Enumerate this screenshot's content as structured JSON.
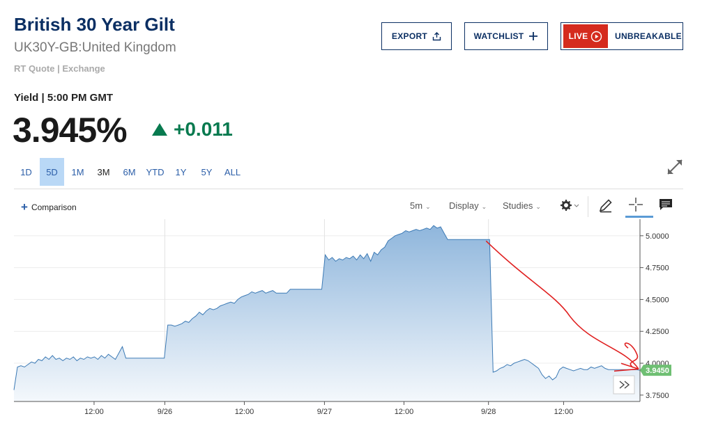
{
  "header": {
    "title": "British 30 Year Gilt",
    "subtitle": "UK30Y-GB:United Kingdom",
    "quote_source": "RT Quote | Exchange"
  },
  "actions": {
    "export_label": "EXPORT",
    "watchlist_label": "WATCHLIST",
    "live_label": "LIVE",
    "live_show_label": "UNBREAKABLE"
  },
  "quote": {
    "yield_label": "Yield | 5:00 PM GMT",
    "price": "3.945%",
    "change": "+0.011",
    "change_color": "#087a4f"
  },
  "ranges": [
    {
      "label": "1D",
      "active": false
    },
    {
      "label": "5D",
      "active": true
    },
    {
      "label": "1M",
      "active": false
    },
    {
      "label": "3M",
      "active": false
    },
    {
      "label": "6M",
      "active": false
    },
    {
      "label": "YTD",
      "active": false
    },
    {
      "label": "1Y",
      "active": false
    },
    {
      "label": "5Y",
      "active": false
    },
    {
      "label": "ALL",
      "active": false
    }
  ],
  "toolbar": {
    "comparison_label": "Comparison",
    "interval_label": "5m",
    "display_label": "Display",
    "studies_label": "Studies",
    "icons": [
      "gear-icon",
      "pencil-icon",
      "crosshair-icon",
      "comment-icon"
    ]
  },
  "chart_data": {
    "type": "area",
    "ylim": [
      3.7,
      5.13
    ],
    "y_ticks": [
      "5.0000",
      "4.7500",
      "4.5000",
      "4.2500",
      "4.0000",
      "3.7500"
    ],
    "x_ticks": [
      "12:00",
      "9/26",
      "12:00",
      "9/27",
      "12:00",
      "9/28",
      "12:00"
    ],
    "last_value_label": "3.9450",
    "color": "#3c7ab5",
    "fill_top": "#8fb6dc",
    "fill_bottom": "#f4f8fc",
    "last_label_color": "#6fbf73",
    "annotation_color": "#e02020",
    "series": [
      {
        "values": [
          3.79,
          3.97,
          3.98,
          3.97,
          3.99,
          4.01,
          4.0,
          4.03,
          4.02,
          4.05,
          4.03,
          4.06,
          4.03,
          4.04,
          4.02,
          4.04,
          4.03,
          4.05,
          4.02,
          4.04,
          4.03,
          4.05,
          4.04,
          4.05,
          4.03,
          4.06,
          4.04,
          4.07,
          4.05,
          4.03,
          4.08,
          4.13,
          4.04,
          4.04,
          4.04,
          4.04,
          4.04,
          4.04,
          4.04,
          4.04,
          4.04,
          4.04,
          4.04,
          4.04,
          4.3,
          4.3,
          4.29,
          4.3,
          4.31,
          4.33,
          4.32,
          4.35,
          4.37,
          4.4,
          4.38,
          4.41,
          4.43,
          4.42,
          4.43,
          4.45,
          4.46,
          4.47,
          4.48,
          4.47,
          4.5,
          4.52,
          4.53,
          4.54,
          4.56,
          4.55,
          4.56,
          4.57,
          4.55,
          4.56,
          4.57,
          4.55,
          4.55,
          4.55,
          4.55,
          4.58,
          4.58,
          4.58,
          4.58,
          4.58,
          4.58,
          4.58,
          4.58,
          4.58,
          4.58,
          4.85,
          4.81,
          4.83,
          4.8,
          4.82,
          4.81,
          4.83,
          4.82,
          4.84,
          4.81,
          4.85,
          4.82,
          4.86,
          4.8,
          4.87,
          4.85,
          4.89,
          4.91,
          4.96,
          4.98,
          5.0,
          5.01,
          5.02,
          5.04,
          5.03,
          5.04,
          5.05,
          5.04,
          5.05,
          5.06,
          5.05,
          5.08,
          5.06,
          5.07,
          5.02,
          4.97,
          4.97,
          4.97,
          4.97,
          4.97,
          4.97,
          4.97,
          4.97,
          4.97,
          4.97,
          4.97,
          4.97,
          4.97,
          3.93,
          3.94,
          3.96,
          3.97,
          3.99,
          3.98,
          4.0,
          4.01,
          4.02,
          4.03,
          4.02,
          4.0,
          3.98,
          3.96,
          3.91,
          3.88,
          3.9,
          3.87,
          3.89,
          3.95,
          3.97,
          3.96,
          3.95,
          3.94,
          3.95,
          3.96,
          3.95,
          3.95,
          3.97,
          3.96,
          3.97,
          3.98,
          3.96,
          3.95,
          3.95,
          3.95,
          3.95,
          3.95,
          3.95,
          3.95,
          3.95,
          3.95,
          3.945
        ]
      }
    ]
  }
}
